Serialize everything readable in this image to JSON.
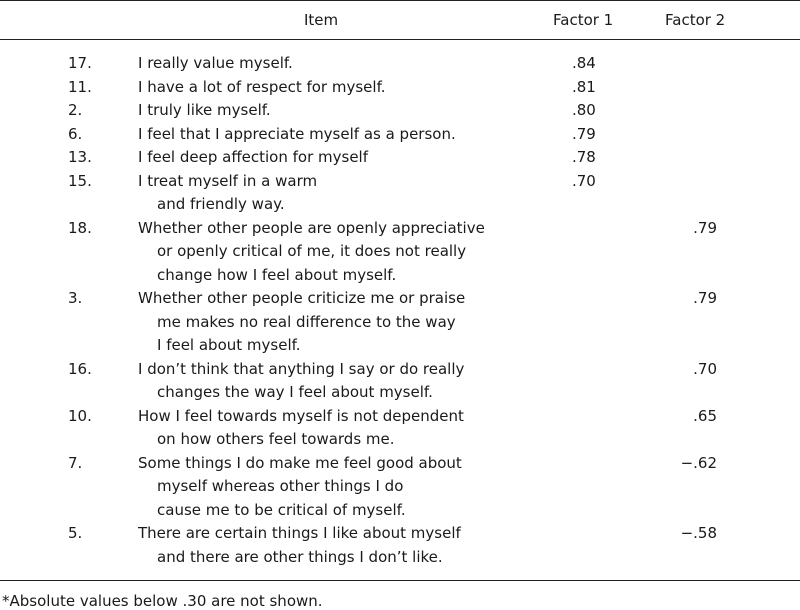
{
  "header": {
    "item": "Item",
    "factor1": "Factor 1",
    "factor2": "Factor 2"
  },
  "rows": [
    {
      "num": "17.",
      "lines": [
        "I really value myself."
      ],
      "f1": ".84",
      "f2": ""
    },
    {
      "num": "11.",
      "lines": [
        "I have a lot of respect for myself."
      ],
      "f1": ".81",
      "f2": ""
    },
    {
      "num": "2.",
      "lines": [
        "I truly like myself."
      ],
      "f1": ".80",
      "f2": ""
    },
    {
      "num": "6.",
      "lines": [
        "I feel that I appreciate myself as a person."
      ],
      "f1": ".79",
      "f2": ""
    },
    {
      "num": "13.",
      "lines": [
        "I feel deep affection for myself"
      ],
      "f1": ".78",
      "f2": ""
    },
    {
      "num": "15.",
      "lines": [
        "I treat myself in a warm",
        "and friendly way."
      ],
      "f1": ".70",
      "f2": ""
    },
    {
      "num": "18.",
      "lines": [
        "Whether other people are openly appreciative",
        "or openly critical of me, it does not really",
        "change how I feel about myself."
      ],
      "f1": "",
      "f2": ".79"
    },
    {
      "num": "3.",
      "lines": [
        "Whether other people criticize me or praise",
        "me makes no real difference to the way",
        "I feel about myself."
      ],
      "f1": "",
      "f2": ".79"
    },
    {
      "num": "16.",
      "lines": [
        "I don’t think that anything I say or do really",
        "changes the way I feel about myself."
      ],
      "f1": "",
      "f2": ".70"
    },
    {
      "num": "10.",
      "lines": [
        "How I feel towards myself is not dependent",
        "on how others feel towards me."
      ],
      "f1": "",
      "f2": ".65"
    },
    {
      "num": "7.",
      "lines": [
        "Some things I do make me feel good about",
        "myself whereas other things I do",
        "cause me to be critical of myself."
      ],
      "f1": "",
      "f2": "−.62"
    },
    {
      "num": "5.",
      "lines": [
        "There are certain things I like about myself",
        "and there are other things I don’t like."
      ],
      "f1": "",
      "f2": "−.58"
    }
  ],
  "footnote": "*Absolute values below .30 are not shown."
}
